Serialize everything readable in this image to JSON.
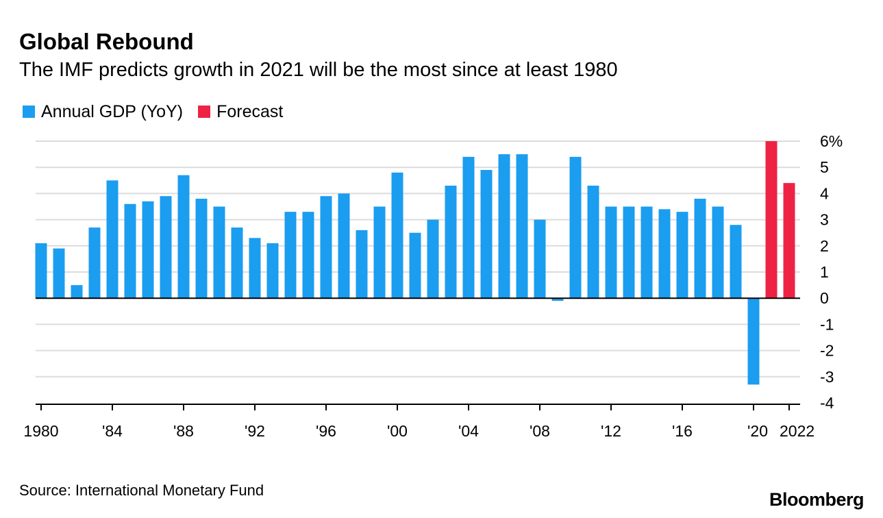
{
  "title": "Global Rebound",
  "subtitle": "The IMF predicts growth in 2021 will be the most since at least 1980",
  "source": "Source: International Monetary Fund",
  "brand": "Bloomberg",
  "legend": [
    {
      "label": "Annual GDP (YoY)",
      "color": "#1b9df0"
    },
    {
      "label": "Forecast",
      "color": "#ee2344"
    }
  ],
  "chart_data": {
    "type": "bar",
    "title": "Global Rebound",
    "subtitle": "The IMF predicts growth in 2021 will be the most since at least 1980",
    "xlabel": "",
    "ylabel": "",
    "ylim": [
      -4,
      6
    ],
    "y_ticks": [
      6,
      5,
      4,
      3,
      2,
      1,
      0,
      -1,
      -2,
      -3,
      -4
    ],
    "y_tick_labels": [
      "6%",
      "5",
      "4",
      "3",
      "2",
      "1",
      "0",
      "-1",
      "-2",
      "-3",
      "-4"
    ],
    "y_axis_position": "right",
    "grid": true,
    "legend_position": "top-left",
    "x_tick_labels": [
      {
        "year": 1980,
        "label": "1980"
      },
      {
        "year": 1984,
        "label": "'84"
      },
      {
        "year": 1988,
        "label": "'88"
      },
      {
        "year": 1992,
        "label": "'92"
      },
      {
        "year": 1996,
        "label": "'96"
      },
      {
        "year": 2000,
        "label": "'00"
      },
      {
        "year": 2004,
        "label": "'04"
      },
      {
        "year": 2008,
        "label": "'08"
      },
      {
        "year": 2012,
        "label": "'12"
      },
      {
        "year": 2016,
        "label": "'16"
      },
      {
        "year": 2020,
        "label": "'20"
      },
      {
        "year": 2022,
        "label": "2022"
      }
    ],
    "categories": [
      1980,
      1981,
      1982,
      1983,
      1984,
      1985,
      1986,
      1987,
      1988,
      1989,
      1990,
      1991,
      1992,
      1993,
      1994,
      1995,
      1996,
      1997,
      1998,
      1999,
      2000,
      2001,
      2002,
      2003,
      2004,
      2005,
      2006,
      2007,
      2008,
      2009,
      2010,
      2011,
      2012,
      2013,
      2014,
      2015,
      2016,
      2017,
      2018,
      2019,
      2020,
      2021,
      2022
    ],
    "series": [
      {
        "name": "Annual GDP (YoY)",
        "color": "#1b9df0",
        "x": [
          1980,
          1981,
          1982,
          1983,
          1984,
          1985,
          1986,
          1987,
          1988,
          1989,
          1990,
          1991,
          1992,
          1993,
          1994,
          1995,
          1996,
          1997,
          1998,
          1999,
          2000,
          2001,
          2002,
          2003,
          2004,
          2005,
          2006,
          2007,
          2008,
          2009,
          2010,
          2011,
          2012,
          2013,
          2014,
          2015,
          2016,
          2017,
          2018,
          2019,
          2020
        ],
        "values": [
          2.1,
          1.9,
          0.5,
          2.7,
          4.5,
          3.6,
          3.7,
          3.9,
          4.7,
          3.8,
          3.5,
          2.7,
          2.3,
          2.1,
          3.3,
          3.3,
          3.9,
          4.0,
          2.6,
          3.5,
          4.8,
          2.5,
          3.0,
          4.3,
          5.4,
          4.9,
          5.5,
          5.5,
          3.0,
          -0.1,
          5.4,
          4.3,
          3.5,
          3.5,
          3.5,
          3.4,
          3.3,
          3.8,
          3.5,
          2.8,
          -3.3
        ]
      },
      {
        "name": "Forecast",
        "color": "#ee2344",
        "x": [
          2021,
          2022
        ],
        "values": [
          6.0,
          4.4
        ]
      }
    ]
  }
}
